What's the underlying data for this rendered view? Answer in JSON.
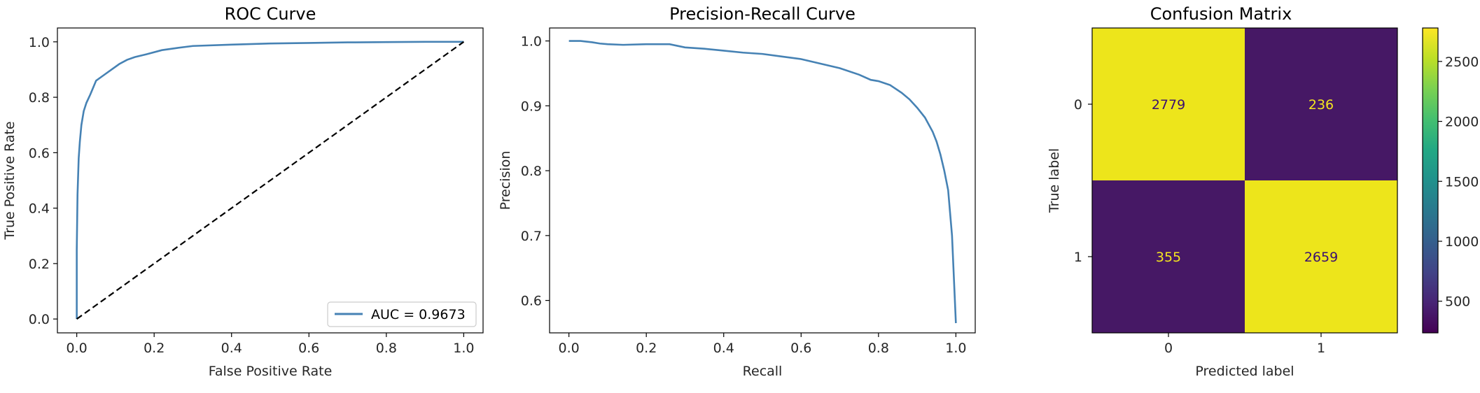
{
  "chart_data": [
    {
      "type": "line",
      "title": "ROC Curve",
      "xlabel": "False Positive Rate",
      "ylabel": "True Positive Rate",
      "xlim": [
        -0.05,
        1.05
      ],
      "ylim": [
        -0.05,
        1.05
      ],
      "xticks": [
        0.0,
        0.2,
        0.4,
        0.6,
        0.8,
        1.0
      ],
      "yticks": [
        0.0,
        0.2,
        0.4,
        0.6,
        0.8,
        1.0
      ],
      "tick_labels": [
        "0.0",
        "0.2",
        "0.4",
        "0.6",
        "0.8",
        "1.0"
      ],
      "grid": false,
      "legend_placement": "lower-right",
      "series": [
        {
          "name": "AUC = 0.9673",
          "color": "#4682b4",
          "x": [
            0,
            0,
            0.002,
            0.005,
            0.008,
            0.012,
            0.018,
            0.025,
            0.035,
            0.05,
            0.07,
            0.09,
            0.11,
            0.13,
            0.15,
            0.18,
            0.22,
            0.26,
            0.3,
            0.4,
            0.5,
            0.6,
            0.7,
            0.8,
            0.9,
            1.0
          ],
          "y": [
            0,
            0.25,
            0.45,
            0.58,
            0.64,
            0.7,
            0.75,
            0.78,
            0.81,
            0.86,
            0.88,
            0.9,
            0.92,
            0.935,
            0.945,
            0.955,
            0.97,
            0.978,
            0.985,
            0.99,
            0.994,
            0.996,
            0.998,
            0.999,
            1.0,
            1.0
          ]
        },
        {
          "style": "dashed",
          "color": "#000000",
          "x": [
            0,
            1
          ],
          "y": [
            0,
            1
          ]
        }
      ]
    },
    {
      "type": "line",
      "title": "Precision-Recall Curve",
      "xlabel": "Recall",
      "ylabel": "Precision",
      "xlim": [
        -0.05,
        1.05
      ],
      "ylim": [
        0.55,
        1.02
      ],
      "xticks": [
        0.0,
        0.2,
        0.4,
        0.6,
        0.8,
        1.0
      ],
      "xtick_labels": [
        "0.0",
        "0.2",
        "0.4",
        "0.6",
        "0.8",
        "1.0"
      ],
      "yticks": [
        0.6,
        0.7,
        0.8,
        0.9,
        1.0
      ],
      "ytick_labels": [
        "0.6",
        "0.7",
        "0.8",
        "0.9",
        "1.0"
      ],
      "grid": false,
      "series": [
        {
          "color": "#4682b4",
          "x": [
            0.0,
            0.03,
            0.06,
            0.08,
            0.1,
            0.14,
            0.2,
            0.26,
            0.3,
            0.35,
            0.4,
            0.45,
            0.5,
            0.55,
            0.6,
            0.65,
            0.7,
            0.75,
            0.78,
            0.8,
            0.83,
            0.86,
            0.88,
            0.9,
            0.92,
            0.94,
            0.95,
            0.96,
            0.97,
            0.98,
            0.99,
            1.0
          ],
          "y": [
            1.0,
            1.0,
            0.998,
            0.996,
            0.995,
            0.994,
            0.995,
            0.995,
            0.99,
            0.988,
            0.985,
            0.982,
            0.98,
            0.976,
            0.972,
            0.965,
            0.958,
            0.948,
            0.94,
            0.938,
            0.932,
            0.92,
            0.91,
            0.897,
            0.882,
            0.86,
            0.845,
            0.825,
            0.8,
            0.77,
            0.7,
            0.565
          ]
        }
      ]
    },
    {
      "type": "heatmap",
      "title": "Confusion Matrix",
      "xlabel": "Predicted label",
      "ylabel": "True label",
      "x_categories": [
        "0",
        "1"
      ],
      "y_categories": [
        "0",
        "1"
      ],
      "values": [
        [
          2779,
          236
        ],
        [
          355,
          2659
        ]
      ],
      "value_labels": [
        [
          "2779",
          "236"
        ],
        [
          "355",
          "2659"
        ]
      ],
      "colormap": "viridis",
      "colorbar": {
        "min": 236,
        "max": 2779,
        "ticks": [
          500,
          1000,
          1500,
          2000,
          2500
        ],
        "tick_labels": [
          "500",
          "1000",
          "1500",
          "2000",
          "2500"
        ]
      },
      "high_color": "#ede51b",
      "low_color": "#461865",
      "text_on_high_color": "#3b0f70",
      "text_on_low_color": "#f5e61f"
    }
  ]
}
